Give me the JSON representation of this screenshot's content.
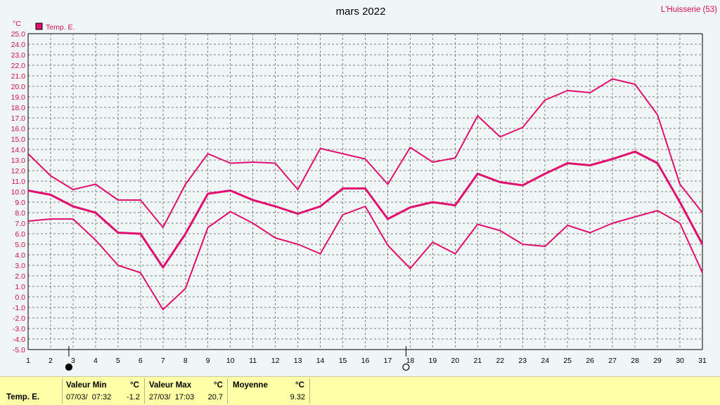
{
  "location": "L'Huisserie (53)",
  "chart_data": {
    "type": "line",
    "title": "mars 2022",
    "ylabel": "°C",
    "ylim": [
      -5.0,
      25.0
    ],
    "ystep": 1.0,
    "grid": true,
    "legend_position": "top-left",
    "legend": [
      {
        "label": "Temp. E.",
        "color": "#e0106e"
      }
    ],
    "x": [
      1,
      2,
      3,
      4,
      5,
      6,
      7,
      8,
      9,
      10,
      11,
      12,
      13,
      14,
      15,
      16,
      17,
      18,
      19,
      20,
      21,
      22,
      23,
      24,
      25,
      26,
      27,
      28,
      29,
      30,
      31
    ],
    "series": [
      {
        "name": "Temp. E.",
        "role": "max",
        "color": "#e0106e",
        "values": [
          13.6,
          11.5,
          10.2,
          10.7,
          9.2,
          9.2,
          6.6,
          10.7,
          13.6,
          12.7,
          12.8,
          12.7,
          10.2,
          14.1,
          13.6,
          13.1,
          10.7,
          14.2,
          12.8,
          13.2,
          17.2,
          15.2,
          16.1,
          18.7,
          19.6,
          19.4,
          20.7,
          20.2,
          17.3,
          10.7,
          8.0
        ]
      },
      {
        "name": "Temp. E.",
        "role": "moyenne",
        "color": "#e0106e",
        "values": [
          10.1,
          9.7,
          8.6,
          8.0,
          6.1,
          6.0,
          2.8,
          6.0,
          9.8,
          10.1,
          9.2,
          8.6,
          7.9,
          8.6,
          10.3,
          10.3,
          7.4,
          8.5,
          9.0,
          8.7,
          11.7,
          10.9,
          10.6,
          11.7,
          12.7,
          12.5,
          13.1,
          13.8,
          12.7,
          9.0,
          5.0
        ]
      },
      {
        "name": "Temp. E.",
        "role": "min",
        "color": "#e0106e",
        "values": [
          7.2,
          7.4,
          7.4,
          5.4,
          3.0,
          2.3,
          -1.2,
          0.8,
          6.6,
          8.1,
          7.0,
          5.6,
          5.0,
          4.1,
          7.8,
          8.6,
          4.9,
          2.7,
          5.2,
          4.1,
          6.9,
          6.3,
          5.0,
          4.8,
          6.8,
          6.1,
          7.0,
          7.6,
          8.2,
          7.0,
          2.3
        ]
      }
    ],
    "moon_phases": [
      {
        "day": 3,
        "phase": "new-moon"
      },
      {
        "day": 18,
        "phase": "full-moon"
      }
    ]
  },
  "stats": {
    "series_label": "Temp. E.",
    "min_header": "Valeur Min",
    "min_unit": "°C",
    "min_date": "07/03/  07:32",
    "min_value": "-1.2",
    "max_header": "Valeur Max",
    "max_unit": "°C",
    "max_date": "27/03/  17:03",
    "max_value": "20.7",
    "avg_header": "Moyenne",
    "avg_unit": "°C",
    "avg_value": "9.32"
  }
}
